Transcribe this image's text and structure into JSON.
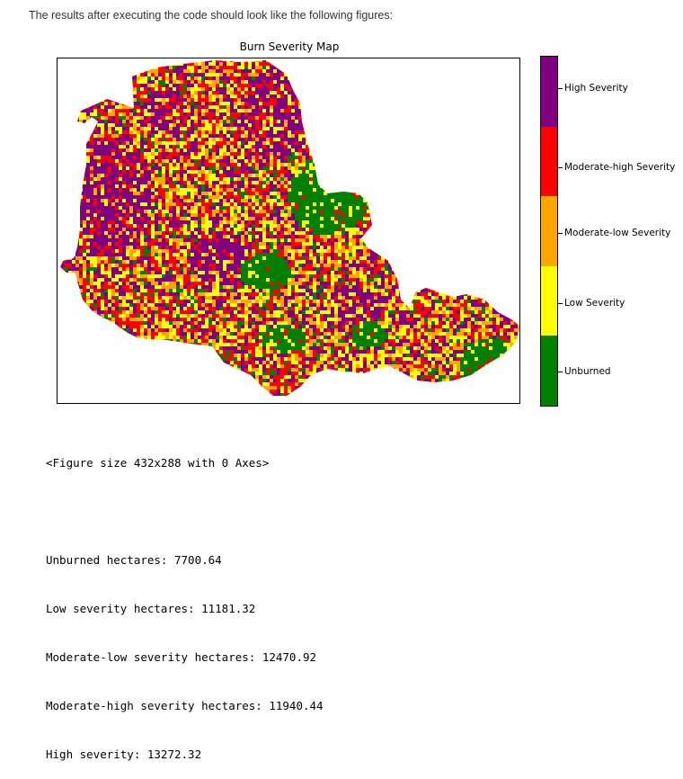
{
  "intro_text": "The results after executing the code should look like the following figures:",
  "chart_data": {
    "type": "heatmap",
    "title": "Burn Severity Map",
    "xlabel": "",
    "ylabel": "",
    "grid": false,
    "colorbar": {
      "position": "right",
      "classes": [
        {
          "label": "Unburned",
          "color": "#008000"
        },
        {
          "label": "Low Severity",
          "color": "#ffff00"
        },
        {
          "label": "Moderate-low Severity",
          "color": "#ffa500"
        },
        {
          "label": "Moderate-high Severity",
          "color": "#ff0000"
        },
        {
          "label": "High Severity",
          "color": "#800080"
        }
      ]
    }
  },
  "console": {
    "figure_line": "<Figure size 432x288 with 0 Axes>",
    "lines": [
      "Unburned hectares: 7700.64",
      "Low severity hectares: 11181.32",
      "Moderate-low severity hectares: 12470.92",
      "Moderate-high severity hectares: 11940.44",
      "High severity: 13272.32"
    ]
  }
}
